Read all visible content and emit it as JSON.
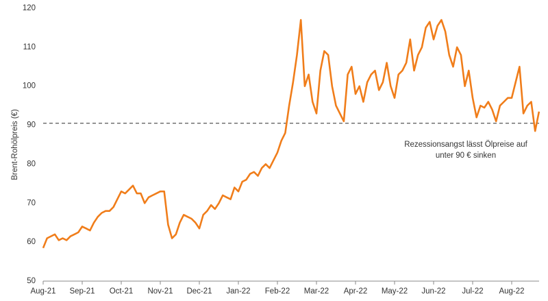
{
  "chart_data": {
    "type": "line",
    "y_label": "Brent-Rohölpreis (€)",
    "annotation": "Rezessionsangst lässt Ölpreise auf unter 90 € sinken",
    "reference_line": 90.5,
    "color": "#f07d1a",
    "ylim": [
      50,
      120
    ],
    "yticks": [
      50,
      60,
      70,
      80,
      90,
      100,
      110,
      120
    ],
    "grid": false,
    "categories": [
      "Aug-21",
      null,
      null,
      null,
      null,
      null,
      null,
      null,
      null,
      null,
      "Sep-21",
      null,
      null,
      null,
      null,
      null,
      null,
      null,
      null,
      null,
      "Oct-21",
      null,
      null,
      null,
      null,
      null,
      null,
      null,
      null,
      null,
      "Nov-21",
      null,
      null,
      null,
      null,
      null,
      null,
      null,
      null,
      null,
      "Dec-21",
      null,
      null,
      null,
      null,
      null,
      null,
      null,
      null,
      null,
      "Jan-22",
      null,
      null,
      null,
      null,
      null,
      null,
      null,
      null,
      null,
      "Feb-22",
      null,
      null,
      null,
      null,
      null,
      null,
      null,
      null,
      null,
      "Mar-22",
      null,
      null,
      null,
      null,
      null,
      null,
      null,
      null,
      null,
      "Apr-22",
      null,
      null,
      null,
      null,
      null,
      null,
      null,
      null,
      null,
      "May-22",
      null,
      null,
      null,
      null,
      null,
      null,
      null,
      null,
      null,
      "Jun-22",
      null,
      null,
      null,
      null,
      null,
      null,
      null,
      null,
      null,
      "Jul-22",
      null,
      null,
      null,
      null,
      null,
      null,
      null,
      null,
      null,
      "Aug-22",
      null,
      null,
      null,
      null,
      null,
      null,
      null
    ],
    "values": [
      58.5,
      61,
      61.5,
      62,
      60.5,
      61,
      60.5,
      61.5,
      62,
      62.5,
      64,
      63.5,
      63,
      65,
      66.5,
      67.5,
      68,
      68,
      69,
      71,
      73,
      72.5,
      73.5,
      74.5,
      72.5,
      72.5,
      70,
      71.5,
      72,
      72.5,
      73,
      73,
      64.5,
      61,
      62,
      65,
      67,
      66.5,
      66,
      65,
      63.5,
      67,
      68,
      69.5,
      68.5,
      70,
      72,
      71.5,
      71,
      74,
      73,
      75.5,
      76,
      77.5,
      78,
      77,
      79,
      80,
      79,
      81,
      83,
      86,
      88,
      95,
      101,
      108,
      117,
      100,
      103,
      96,
      93,
      104,
      109,
      108,
      100,
      95,
      93,
      91,
      103,
      105,
      98,
      100,
      96,
      101,
      103,
      104,
      99,
      101,
      106,
      100,
      97,
      103,
      104,
      106,
      112,
      104,
      108,
      110,
      115,
      116.5,
      112,
      115.5,
      117,
      114,
      108,
      105,
      110,
      108,
      100,
      104,
      97,
      92,
      95,
      94.5,
      96,
      94,
      91,
      95,
      96,
      97,
      97,
      101,
      105,
      93,
      95,
      96,
      88.5,
      93.5
    ]
  }
}
